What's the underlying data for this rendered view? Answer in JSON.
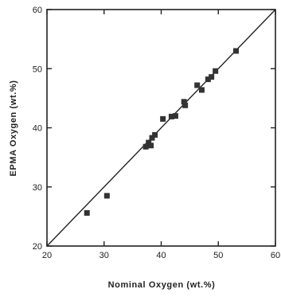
{
  "chart_data": {
    "type": "scatter",
    "title": "",
    "xlabel": "Nominal  Oxygen  (wt.%)",
    "ylabel": "EPMA  Oxygen  (wt.%)",
    "xlim": [
      20,
      60
    ],
    "ylim": [
      20,
      60
    ],
    "x_ticks": [
      20,
      30,
      40,
      50,
      60
    ],
    "y_ticks": [
      20,
      30,
      40,
      50,
      60
    ],
    "x_tick_labels": [
      "20",
      "30",
      "40",
      "50",
      "60"
    ],
    "y_tick_labels": [
      "20",
      "30",
      "40",
      "50",
      "60"
    ],
    "grid": false,
    "reference_line": {
      "from": [
        20,
        20
      ],
      "to": [
        60,
        60
      ]
    },
    "marker": "filled-square",
    "colors": {
      "marker": "#333333",
      "axis": "#222222",
      "line": "#222222"
    },
    "points": [
      {
        "x": 27,
        "y": 25.6
      },
      {
        "x": 30.5,
        "y": 28.5
      },
      {
        "x": 37.3,
        "y": 36.8
      },
      {
        "x": 37.8,
        "y": 37.5
      },
      {
        "x": 38.2,
        "y": 37.0
      },
      {
        "x": 38.4,
        "y": 38.3
      },
      {
        "x": 38.9,
        "y": 38.8
      },
      {
        "x": 40.3,
        "y": 41.5
      },
      {
        "x": 41.8,
        "y": 41.9
      },
      {
        "x": 42.5,
        "y": 42.0
      },
      {
        "x": 44.0,
        "y": 44.4
      },
      {
        "x": 44.2,
        "y": 43.8
      },
      {
        "x": 46.3,
        "y": 47.2
      },
      {
        "x": 47.1,
        "y": 46.4
      },
      {
        "x": 48.2,
        "y": 48.2
      },
      {
        "x": 48.8,
        "y": 48.6
      },
      {
        "x": 49.5,
        "y": 49.6
      },
      {
        "x": 53.1,
        "y": 53.0
      }
    ]
  }
}
